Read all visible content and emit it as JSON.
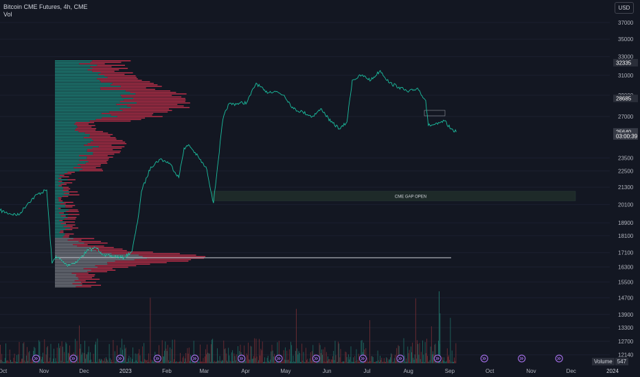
{
  "header": {
    "symbol_line": "Bitcoin CME Futures, 4h, CME",
    "indicator_line": "Vol",
    "currency_button": "USD"
  },
  "volume_legend": {
    "label": "Volume",
    "value": "547"
  },
  "colors": {
    "background": "#131722",
    "up": "#26a69a",
    "down": "#ef5350",
    "profile_up": "#1e8a7e",
    "profile_down": "#c2304a",
    "volume_up": "#1f6f66",
    "volume_down": "#7a2f35",
    "price_line": "#1bbfa0",
    "gap_box": "#1e2a29",
    "event_icon": "#9c6ade"
  },
  "annotations": {
    "gap_label": "CME GAP OPEN",
    "poc_level": 16800
  },
  "chart_data": {
    "type": "line",
    "title": "Bitcoin CME Futures, 4h, CME",
    "y_scale": "log",
    "ylim": [
      11800,
      39000
    ],
    "y_ticks": [
      37000,
      35000,
      33000,
      31000,
      29000,
      27000,
      23500,
      22500,
      21300,
      20100,
      18900,
      18100,
      17100,
      16300,
      15500,
      14700,
      13900,
      13300,
      12700,
      12140
    ],
    "x_ticks": [
      "Oct",
      "Nov",
      "Dec",
      "2023",
      "Feb",
      "Mar",
      "Apr",
      "May",
      "Jun",
      "Jul",
      "Aug",
      "Sep",
      "Oct",
      "Nov",
      "Dec",
      "2024"
    ],
    "x_range": [
      "2022-10-01",
      "2024-01-01"
    ],
    "price_labels": [
      {
        "value": 32335,
        "text": "32335"
      },
      {
        "value": 28685,
        "text": "28685"
      },
      {
        "value": 25640,
        "text": "25640"
      },
      {
        "value": 25290,
        "text": "03:00:39"
      }
    ],
    "series": [
      {
        "x": [
          "2022-10-01",
          "2022-10-08",
          "2022-10-15",
          "2022-10-22",
          "2022-10-29",
          "2022-11-05",
          "2022-11-09",
          "2022-11-12",
          "2022-11-20",
          "2022-11-28",
          "2022-12-05",
          "2022-12-12",
          "2022-12-19",
          "2022-12-26",
          "2023-01-02",
          "2023-01-08",
          "2023-01-12",
          "2023-01-15",
          "2023-01-22",
          "2023-01-29",
          "2023-02-05",
          "2023-02-12",
          "2023-02-16",
          "2023-02-20",
          "2023-02-27",
          "2023-03-05",
          "2023-03-10",
          "2023-03-13",
          "2023-03-17",
          "2023-03-21",
          "2023-03-28",
          "2023-04-04",
          "2023-04-11",
          "2023-04-18",
          "2023-04-25",
          "2023-05-02",
          "2023-05-09",
          "2023-05-16",
          "2023-05-23",
          "2023-05-30",
          "2023-06-06",
          "2023-06-13",
          "2023-06-18",
          "2023-06-22",
          "2023-06-29",
          "2023-07-06",
          "2023-07-13",
          "2023-07-20",
          "2023-07-27",
          "2023-08-03",
          "2023-08-10",
          "2023-08-16",
          "2023-08-18",
          "2023-08-25",
          "2023-08-30",
          "2023-09-04",
          "2023-09-08"
        ],
        "values": [
          19700,
          19500,
          19400,
          20200,
          20800,
          21100,
          16500,
          16900,
          16400,
          16600,
          17200,
          17400,
          16900,
          16900,
          16800,
          17200,
          18900,
          21000,
          22800,
          23400,
          23100,
          22000,
          24300,
          24500,
          23500,
          22600,
          20200,
          22800,
          26700,
          28100,
          28200,
          28300,
          30200,
          29300,
          29400,
          29000,
          27700,
          27400,
          27000,
          27700,
          26500,
          25900,
          26500,
          30500,
          31000,
          30500,
          31500,
          30200,
          29800,
          29300,
          29700,
          28500,
          26200,
          26300,
          26600,
          25900,
          25640
        ]
      }
    ]
  }
}
